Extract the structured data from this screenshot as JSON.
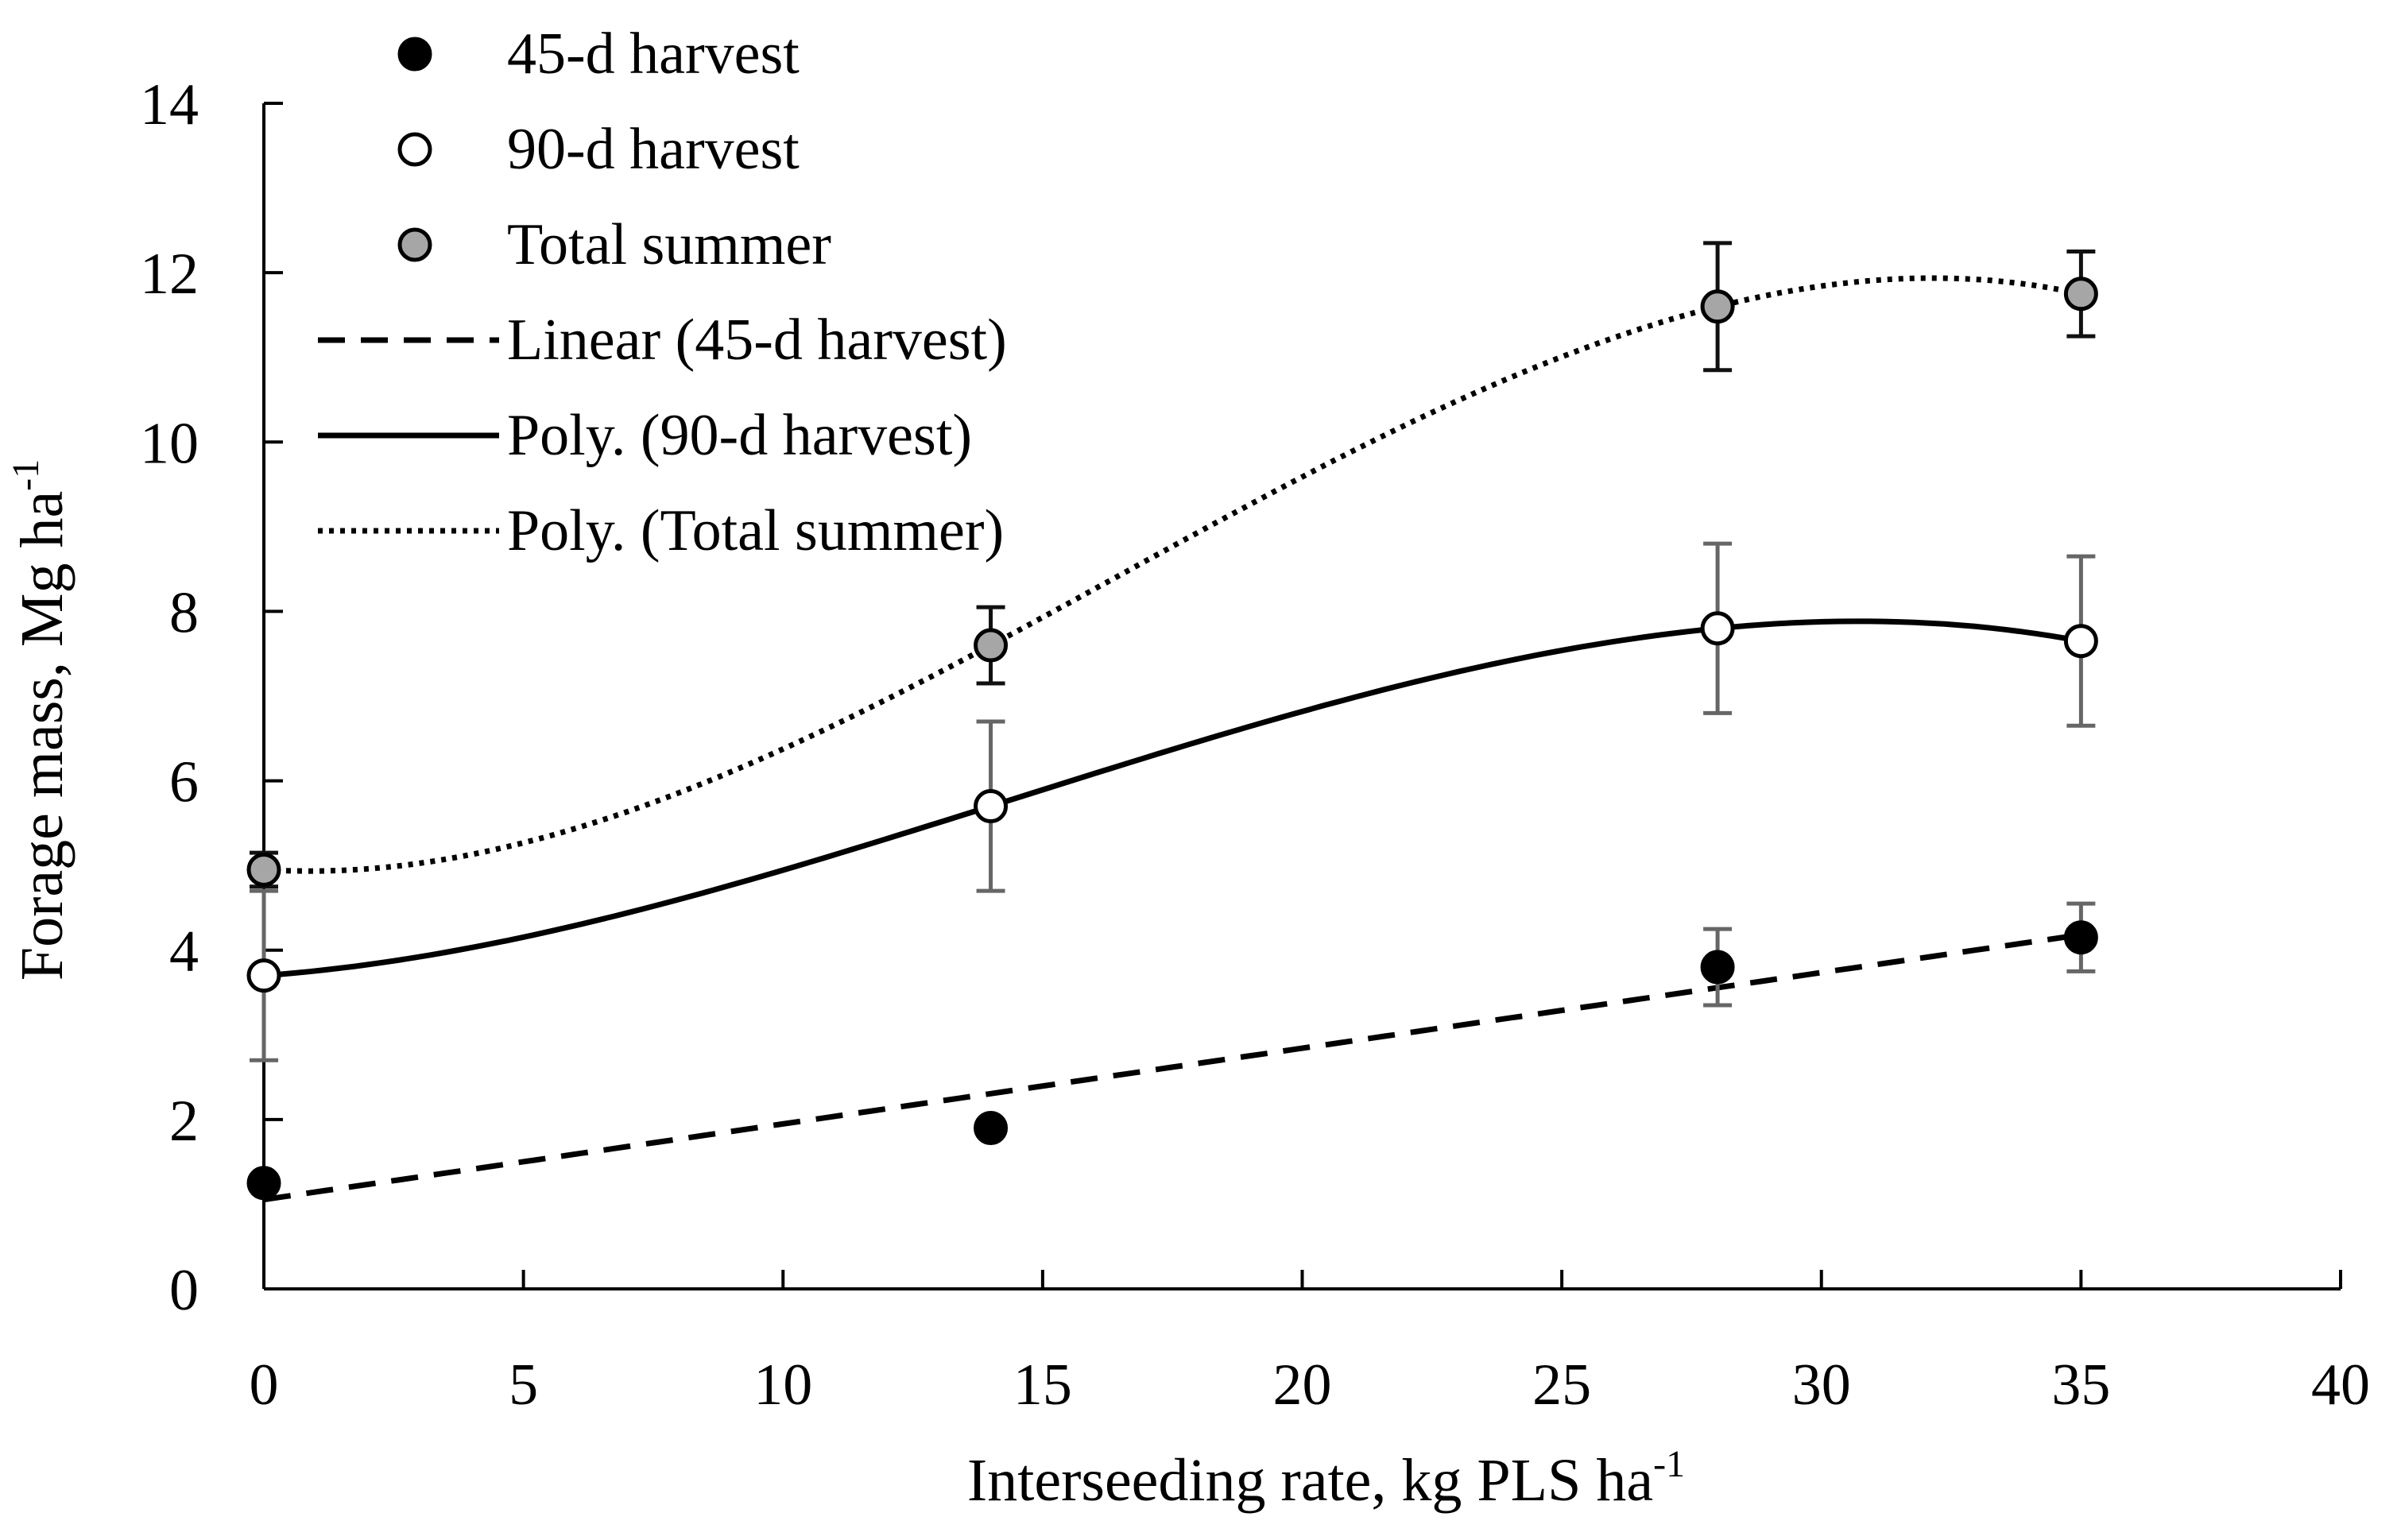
{
  "chart_data": {
    "type": "scatter",
    "title": "",
    "xlabel": "Interseeding rate, kg PLS ha",
    "xlabel_sup": "-1",
    "ylabel": "Forage mass, Mg ha",
    "ylabel_sup": "-1",
    "xlim": [
      0,
      40
    ],
    "ylim": [
      0,
      14
    ],
    "xticks": [
      0,
      5,
      10,
      15,
      20,
      25,
      30,
      35,
      40
    ],
    "yticks": [
      0,
      2,
      4,
      6,
      8,
      10,
      12,
      14
    ],
    "grid": false,
    "legend_position": "top-left",
    "x": [
      0,
      14,
      28,
      35
    ],
    "series": [
      {
        "name": "45-d harvest",
        "marker": "filled-black",
        "values": [
          1.25,
          1.9,
          3.8,
          4.15
        ],
        "errors": [
          null,
          null,
          0.45,
          0.4
        ],
        "error_color": "#666666"
      },
      {
        "name": "90-d harvest",
        "marker": "open-white",
        "values": [
          3.7,
          5.7,
          7.8,
          7.65
        ],
        "errors": [
          1.0,
          1.0,
          1.0,
          1.0
        ],
        "error_color": "#666666"
      },
      {
        "name": "Total summer",
        "marker": "filled-gray",
        "values": [
          4.95,
          7.6,
          11.6,
          11.75
        ],
        "errors": [
          0.2,
          0.45,
          0.75,
          0.5
        ],
        "error_color": "#111111"
      }
    ],
    "trendlines": [
      {
        "name": "Linear (45-d harvest)",
        "style": "dashed",
        "fit": "linear",
        "source_series": "45-d harvest"
      },
      {
        "name": "Poly. (90-d harvest)",
        "style": "solid",
        "fit": "poly3",
        "source_series": "90-d harvest"
      },
      {
        "name": "Poly. (Total summer)",
        "style": "dotted",
        "fit": "poly3",
        "source_series": "Total summer"
      }
    ]
  },
  "colors": {
    "black": "#000000",
    "gray_marker": "#a6a6a6",
    "white": "#ffffff"
  }
}
